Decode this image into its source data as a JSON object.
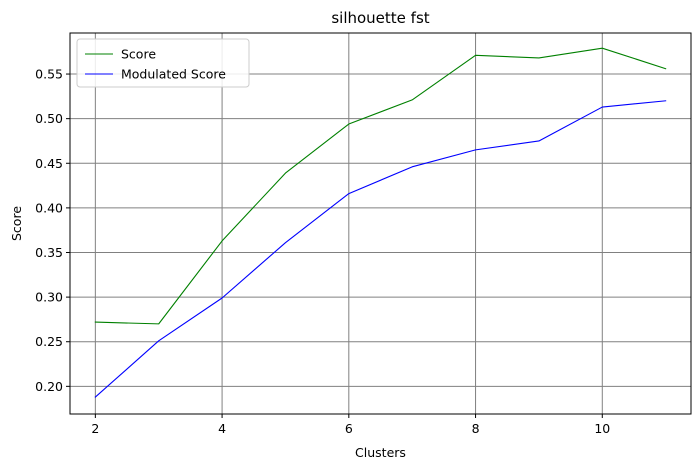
{
  "chart_data": {
    "type": "line",
    "title": "silhouette fst",
    "xlabel": "Clusters",
    "ylabel": "Score",
    "x": [
      2,
      3,
      4,
      5,
      6,
      7,
      8,
      9,
      10,
      11
    ],
    "xlim": [
      1.6,
      11.4
    ],
    "ylim": [
      0.169,
      0.596
    ],
    "xticks": [
      2,
      4,
      6,
      8,
      10
    ],
    "xtick_labels": [
      "2",
      "4",
      "6",
      "8",
      "10"
    ],
    "yticks": [
      0.2,
      0.25,
      0.3,
      0.35,
      0.4,
      0.45,
      0.5,
      0.55
    ],
    "ytick_labels": [
      "0.20",
      "0.25",
      "0.30",
      "0.35",
      "0.40",
      "0.45",
      "0.50",
      "0.55"
    ],
    "grid": true,
    "legend_position": "top-left",
    "series": [
      {
        "name": "Score",
        "color": "#008000",
        "values": [
          0.272,
          0.27,
          0.363,
          0.439,
          0.494,
          0.521,
          0.571,
          0.568,
          0.579,
          0.556
        ]
      },
      {
        "name": "Modulated Score",
        "color": "#0000ff",
        "values": [
          0.188,
          0.251,
          0.299,
          0.361,
          0.416,
          0.446,
          0.465,
          0.475,
          0.513,
          0.52
        ]
      }
    ]
  }
}
